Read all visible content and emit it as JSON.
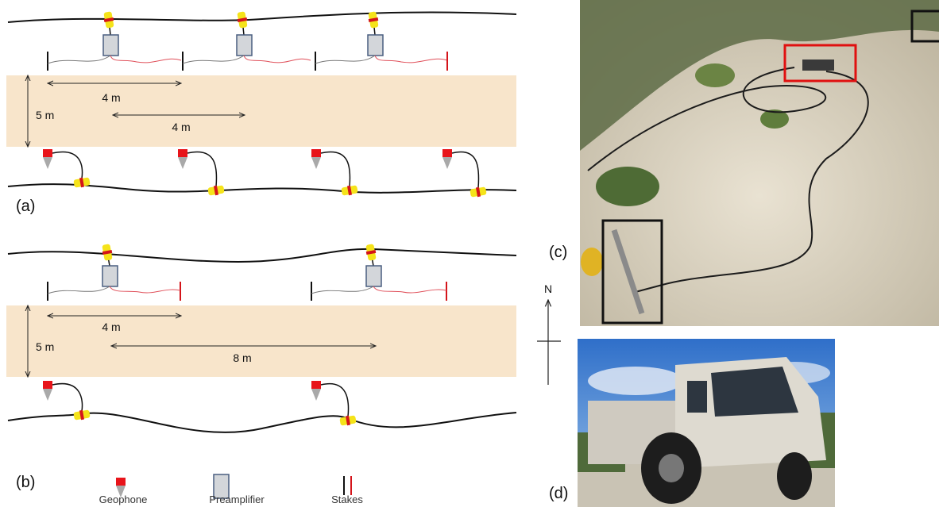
{
  "panel_a": {
    "label": "(a)",
    "spacing_labels": [
      "4 m",
      "4 m"
    ],
    "width_label": "5 m"
  },
  "panel_b": {
    "label": "(b)",
    "spacing_labels": [
      "4 m",
      "8 m"
    ],
    "width_label": "5 m"
  },
  "legend": {
    "items": [
      "Geophone",
      "Preamplifier",
      "Stakes"
    ]
  },
  "compass": {
    "label": "N"
  },
  "panel_c": {
    "label": "(c)"
  },
  "panel_d": {
    "label": "(d)"
  }
}
